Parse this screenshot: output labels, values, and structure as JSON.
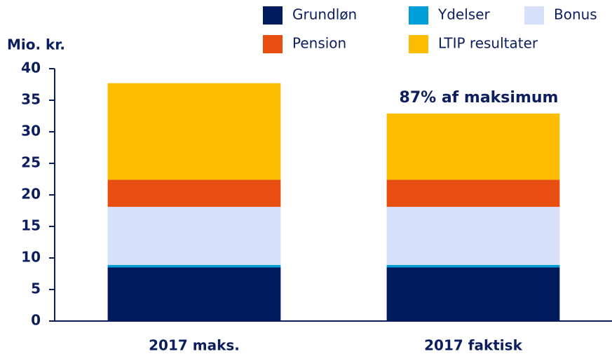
{
  "chart_data": {
    "type": "stacked_bar",
    "y_axis_label": "Mio. kr.",
    "annotation": "87% af maksimum",
    "categories": [
      "2017 maks.",
      "2017 faktisk"
    ],
    "series": [
      {
        "name": "Grundløn",
        "color": "#001a5e",
        "values": [
          8.5,
          8.5
        ]
      },
      {
        "name": "Ydelser",
        "color": "#009fda",
        "values": [
          0.4,
          0.4
        ]
      },
      {
        "name": "Bonus",
        "color": "#d6e0fa",
        "values": [
          9.2,
          9.2
        ]
      },
      {
        "name": "Pension",
        "color": "#e84e10",
        "values": [
          4.3,
          4.3
        ]
      },
      {
        "name": "LTIP resultater",
        "color": "#fcbd00",
        "values": [
          15.3,
          10.5
        ]
      }
    ],
    "ylim": [
      0,
      40
    ],
    "yticks": [
      0,
      5,
      10,
      15,
      20,
      25,
      30,
      35,
      40
    ],
    "grid": false
  }
}
